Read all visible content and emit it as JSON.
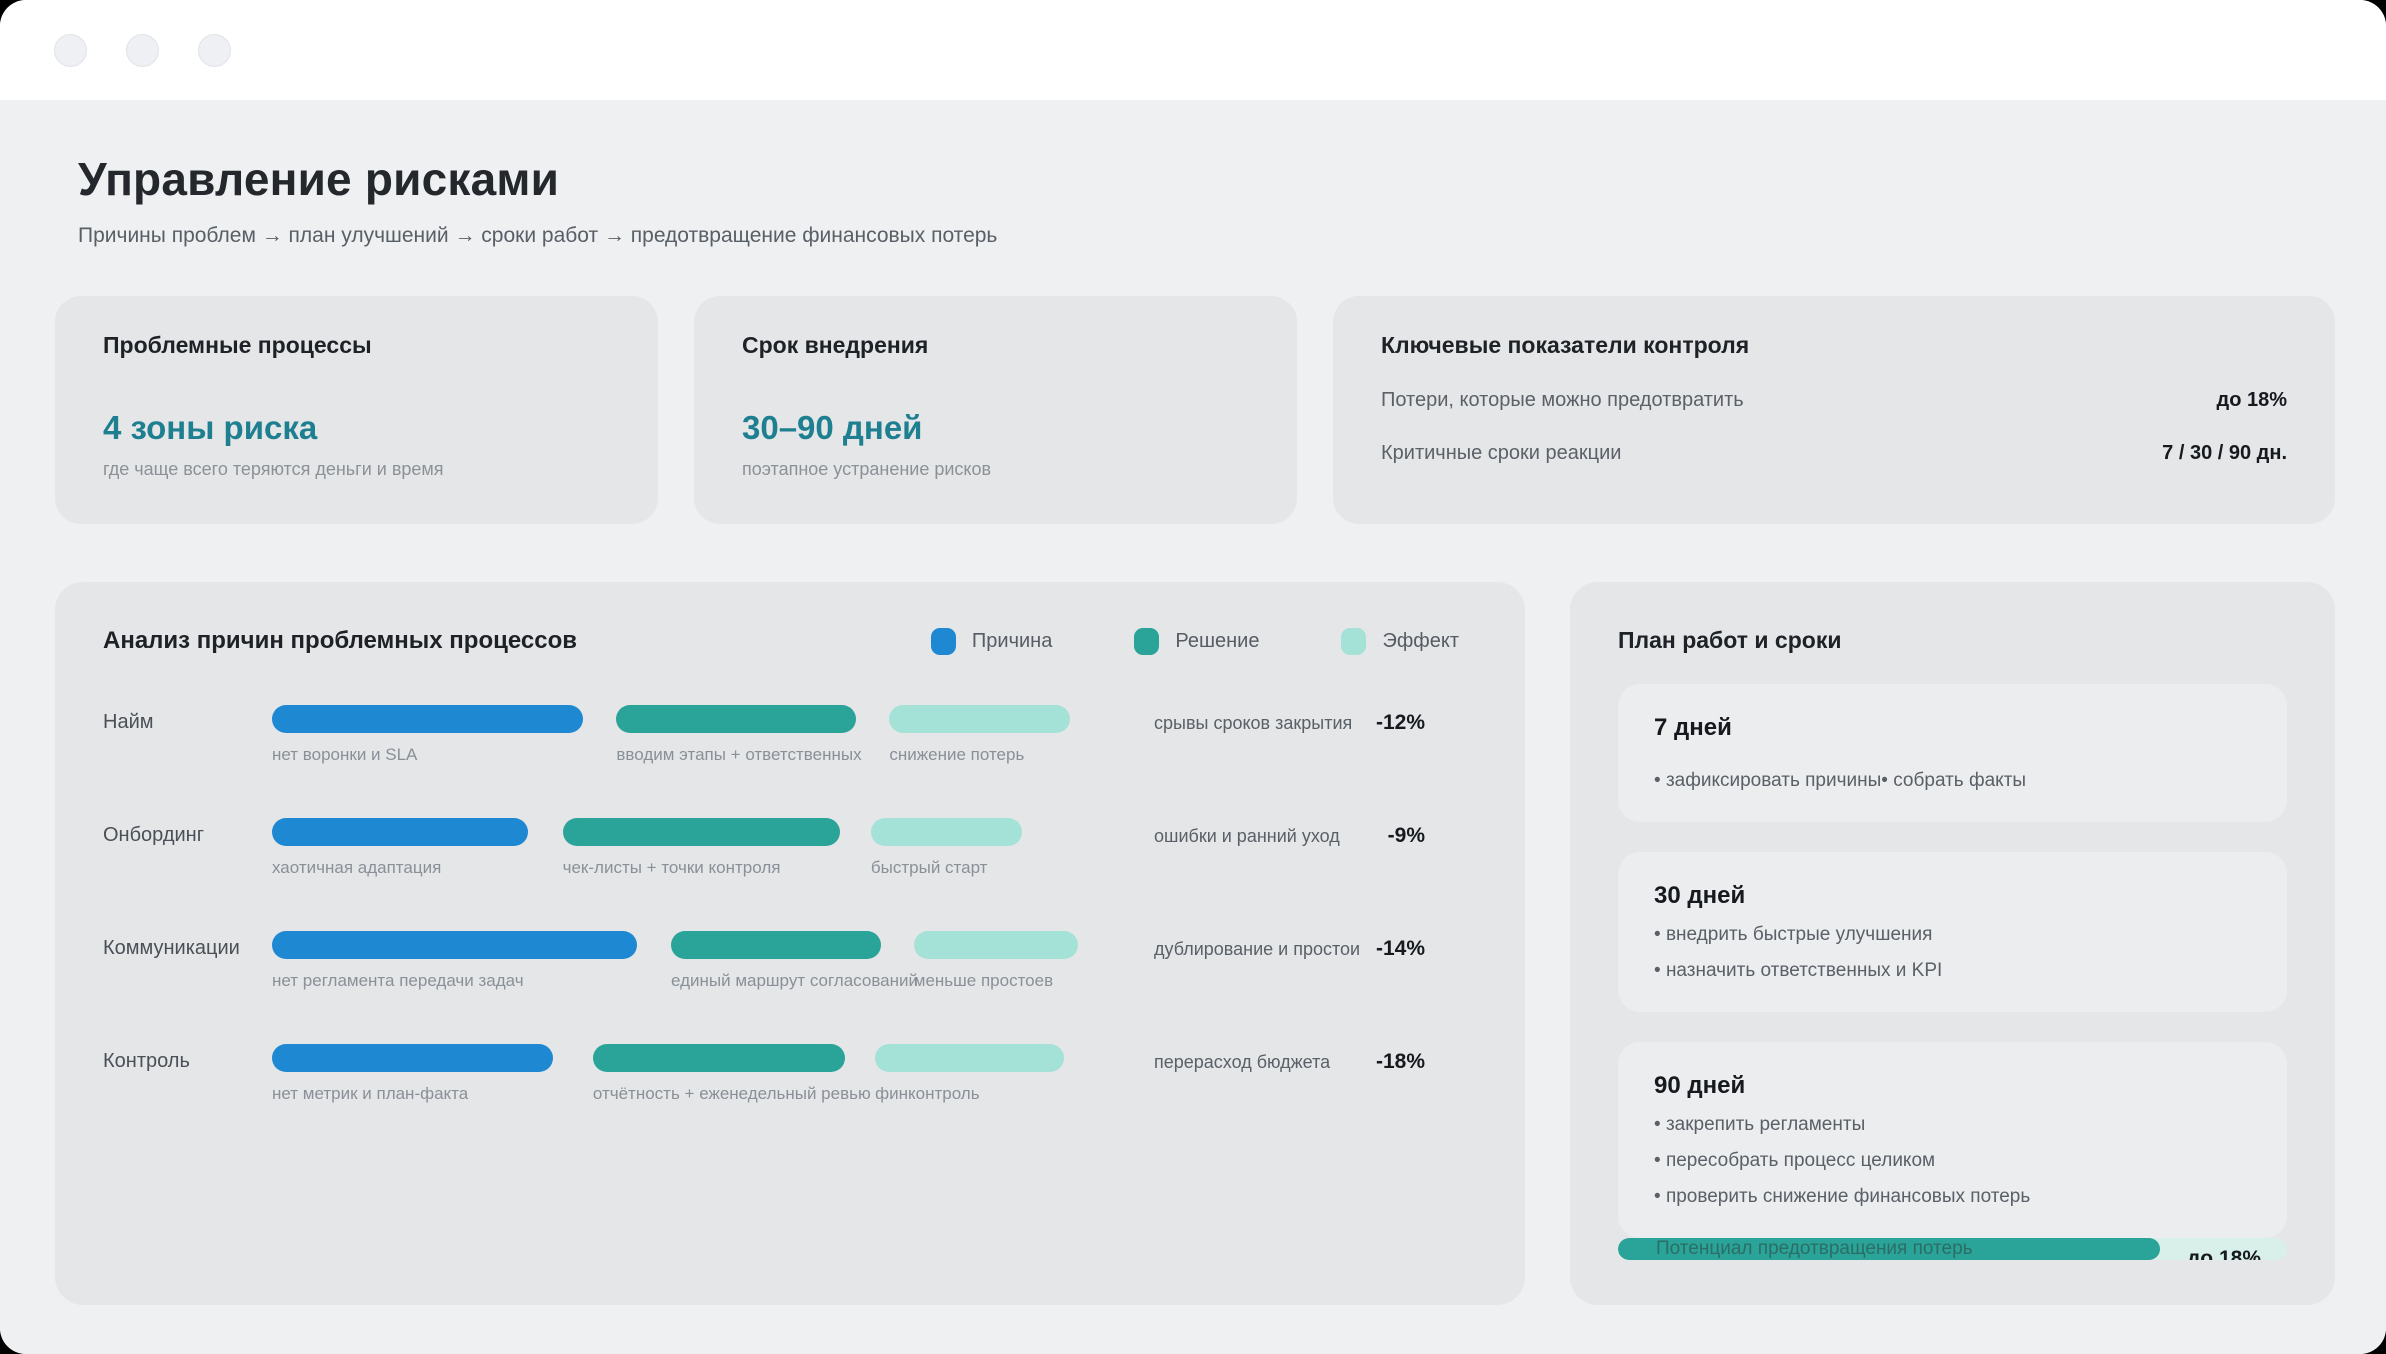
{
  "colors": {
    "cause": "#1e88d2",
    "solution": "#2aa398",
    "effect": "#a4e2d7",
    "accent_text": "#1e7f91"
  },
  "header": {
    "title": "Управление рисками",
    "subtitle": "Причины проблем → план улучшений → сроки работ → предотвращение финансовых потерь"
  },
  "summary_cards": {
    "problem": {
      "title": "Проблемные процессы",
      "value": "4 зоны риска",
      "caption": "где чаще всего теряются деньги и время"
    },
    "term": {
      "title": "Срок внедрения",
      "value": "30–90 дней",
      "caption": "поэтапное устранение рисков"
    },
    "kpi": {
      "title": "Ключевые показатели контроля",
      "rows": [
        {
          "label": "Потери, которые можно предотвратить",
          "value": "до 18%"
        },
        {
          "label": "Критичные сроки реакции",
          "value": "7 / 30 / 90 дн."
        }
      ]
    }
  },
  "analysis": {
    "title": "Анализ причин проблемных процессов",
    "legend": [
      {
        "label": "Причина",
        "color": "#1e88d2"
      },
      {
        "label": "Решение",
        "color": "#2aa398"
      },
      {
        "label": "Эффект",
        "color": "#a4e2d7"
      }
    ],
    "rows": [
      {
        "category": "Найм",
        "cause": {
          "label": "нет воронки и SLA",
          "left": "0%",
          "width": "37%"
        },
        "solution": {
          "label": "вводим этапы + ответственных",
          "left": "41%",
          "width": "28.5%"
        },
        "effect": {
          "label": "снижение потерь",
          "left": "73.5%",
          "width": "21.5%"
        },
        "impact_text": "срывы сроков закрытия",
        "impact_value": "-12%"
      },
      {
        "category": "Онбординг",
        "cause": {
          "label": "хаотичная адаптация",
          "left": "0%",
          "width": "30.5%"
        },
        "solution": {
          "label": "чек-листы + точки контроля",
          "left": "34.6%",
          "width": "33%"
        },
        "effect": {
          "label": "быстрый старт",
          "left": "71.3%",
          "width": "18%"
        },
        "impact_text": "ошибки и ранний уход",
        "impact_value": "-9%"
      },
      {
        "category": "Коммуникации",
        "cause": {
          "label": "нет регламента передачи задач",
          "left": "0%",
          "width": "43.5%"
        },
        "solution": {
          "label": "единый маршрут согласований",
          "left": "47.5%",
          "width": "25%"
        },
        "effect": {
          "label": "меньше простоев",
          "left": "76.4%",
          "width": "19.5%"
        },
        "impact_text": "дублирование и простои",
        "impact_value": "-14%"
      },
      {
        "category": "Контроль",
        "cause": {
          "label": "нет метрик и план-факта",
          "left": "0%",
          "width": "33.5%"
        },
        "solution": {
          "label": "отчётность + еженедельный ревью",
          "left": "38.2%",
          "width": "30%"
        },
        "effect": {
          "label": "финконтроль",
          "left": "71.8%",
          "width": "22.5%"
        },
        "impact_text": "перерасход бюджета",
        "impact_value": "-18%"
      }
    ]
  },
  "chart_data": {
    "type": "bar",
    "title": "Анализ причин проблемных процессов",
    "categories": [
      "Найм",
      "Онбординг",
      "Коммуникации",
      "Контроль"
    ],
    "series": [
      {
        "name": "Причина",
        "labels": [
          "нет воронки и SLA",
          "хаотичная адаптация",
          "нет регламента передачи задач",
          "нет метрик и план-факта"
        ],
        "widths_pct": [
          37,
          30.5,
          43.5,
          33.5
        ]
      },
      {
        "name": "Решение",
        "labels": [
          "вводим этапы + ответственных",
          "чек-листы + точки контроля",
          "единый маршрут согласований",
          "отчётность + еженедельный ревью"
        ],
        "widths_pct": [
          28.5,
          33,
          25,
          30
        ]
      },
      {
        "name": "Эффект",
        "labels": [
          "снижение потерь",
          "быстрый старт",
          "меньше простоев",
          "финконтроль"
        ],
        "widths_pct": [
          21.5,
          18,
          19.5,
          22.5
        ]
      }
    ],
    "impact_labels": [
      "срывы сроков закрытия",
      "ошибки и ранний уход",
      "дублирование и простои",
      "перерасход бюджета"
    ],
    "impact_values_pct": [
      -12,
      -9,
      -14,
      -18
    ],
    "legend_position": "top-right"
  },
  "plan": {
    "title": "План работ и сроки",
    "stages": [
      {
        "title": "7 дней",
        "items": [
          "зафиксировать причины",
          "собрать факты"
        ]
      },
      {
        "title": "30 дней",
        "items": [
          "внедрить быстрые улучшения",
          "назначить ответственных и KPI"
        ]
      },
      {
        "title": "90 дней",
        "items": [
          "закрепить регламенты",
          "пересобрать процесс целиком",
          "проверить снижение финансовых потерь"
        ]
      }
    ],
    "progress": {
      "label": "Потенциал предотвращения потерь",
      "value": "до 18%",
      "fill": "81%"
    }
  }
}
